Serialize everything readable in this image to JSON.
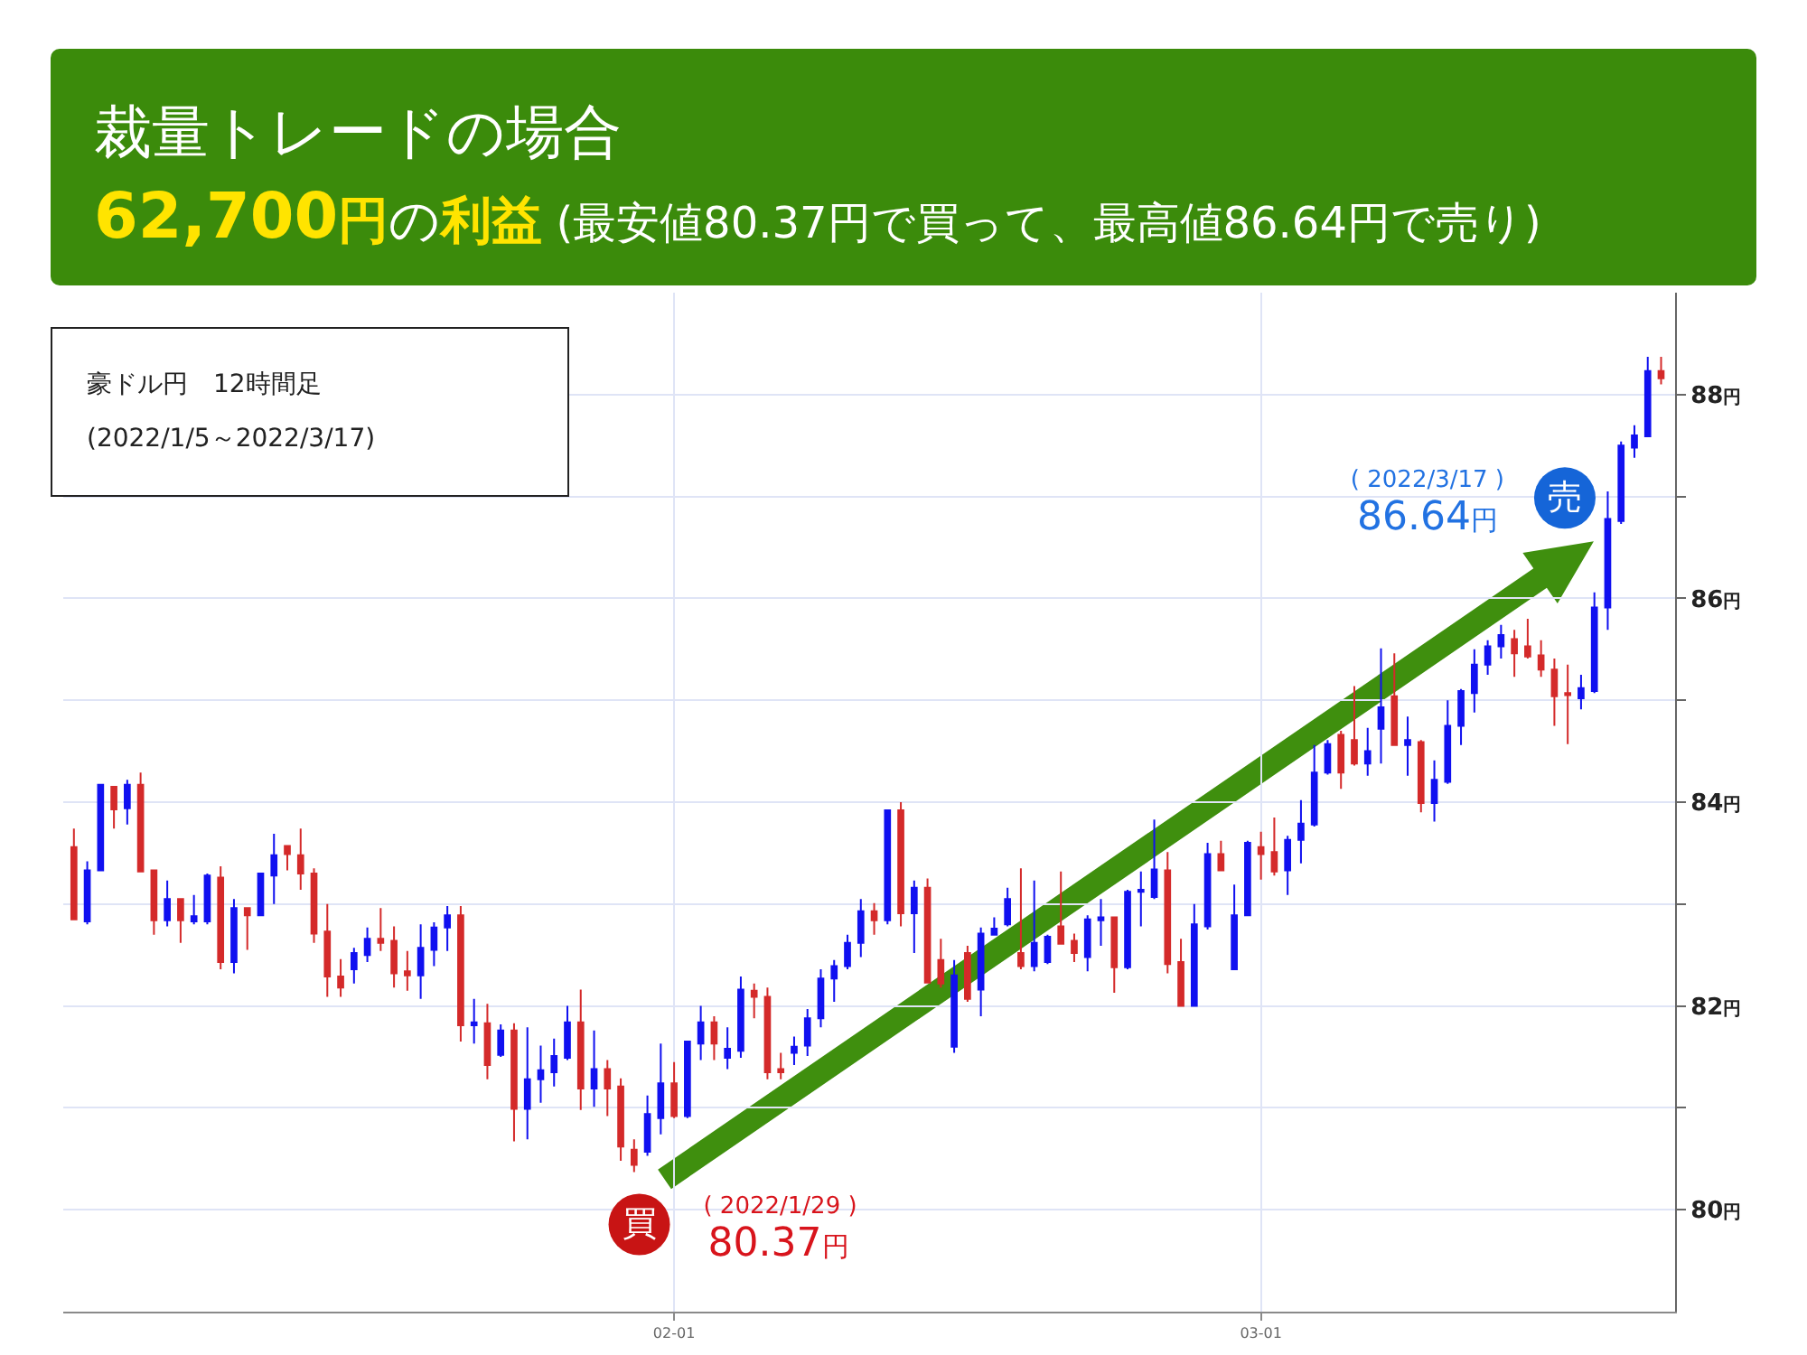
{
  "chart_data": {
    "type": "candlestick",
    "title": "裁量トレードの場合",
    "subtitle": "62,700円の利益 (最安値80.37円で買って、最高値86.64円で売り)",
    "categories": [
      null,
      null,
      null,
      null,
      null,
      null,
      null,
      null,
      null,
      null,
      null,
      null,
      null,
      null,
      null,
      null,
      null,
      null,
      null,
      null,
      null,
      null,
      null,
      null,
      null,
      null,
      null,
      null,
      null,
      null,
      null,
      null,
      null,
      null,
      null,
      null,
      null,
      null,
      null,
      null,
      null,
      null,
      null,
      null,
      null,
      "02-01",
      null,
      null,
      null,
      null,
      null,
      null,
      null,
      null,
      null,
      null,
      null,
      null,
      null,
      null,
      null,
      null,
      null,
      null,
      null,
      null,
      null,
      null,
      null,
      null,
      null,
      null,
      null,
      null,
      null,
      null,
      null,
      null,
      null,
      null,
      null,
      null,
      null,
      null,
      null,
      null,
      null,
      null,
      null,
      "03-01",
      null,
      null,
      null,
      null,
      null,
      null,
      null,
      null,
      null,
      null,
      null,
      null,
      null,
      null,
      null,
      null,
      null,
      null,
      null,
      null,
      null,
      null,
      null,
      null,
      null,
      null,
      null,
      null,
      null,
      null
    ],
    "ohlc": [
      [
        83.56,
        83.74,
        82.85,
        82.85
      ],
      [
        82.83,
        83.42,
        82.8,
        83.33
      ],
      [
        83.33,
        84.17,
        83.33,
        84.17
      ],
      [
        84.15,
        84.15,
        83.74,
        83.93
      ],
      [
        83.94,
        84.22,
        83.78,
        84.17
      ],
      [
        84.17,
        84.29,
        83.32,
        83.32
      ],
      [
        83.33,
        83.33,
        82.7,
        82.84
      ],
      [
        82.84,
        83.23,
        82.78,
        83.05
      ],
      [
        83.05,
        83.05,
        82.62,
        82.84
      ],
      [
        82.83,
        83.09,
        82.8,
        82.88
      ],
      [
        82.83,
        83.3,
        82.8,
        83.28
      ],
      [
        83.26,
        83.37,
        82.36,
        82.43
      ],
      [
        82.43,
        83.05,
        82.32,
        82.96
      ],
      [
        82.96,
        82.96,
        82.55,
        82.89
      ],
      [
        82.89,
        83.3,
        82.89,
        83.3
      ],
      [
        83.28,
        83.69,
        83.0,
        83.48
      ],
      [
        83.57,
        83.58,
        83.33,
        83.49
      ],
      [
        83.48,
        83.74,
        83.14,
        83.3
      ],
      [
        83.3,
        83.35,
        82.62,
        82.71
      ],
      [
        82.73,
        83.0,
        82.09,
        82.29
      ],
      [
        82.29,
        82.46,
        82.09,
        82.18
      ],
      [
        82.36,
        82.57,
        82.22,
        82.52
      ],
      [
        82.5,
        82.77,
        82.43,
        82.66
      ],
      [
        82.66,
        82.96,
        82.54,
        82.62
      ],
      [
        82.64,
        82.78,
        82.18,
        82.32
      ],
      [
        82.34,
        82.54,
        82.15,
        82.3
      ],
      [
        82.3,
        82.8,
        82.07,
        82.57
      ],
      [
        82.55,
        82.82,
        82.39,
        82.77
      ],
      [
        82.77,
        82.98,
        82.54,
        82.89
      ],
      [
        82.89,
        82.98,
        81.65,
        81.81
      ],
      [
        81.81,
        82.07,
        81.63,
        81.84
      ],
      [
        81.83,
        82.02,
        81.28,
        81.42
      ],
      [
        81.52,
        81.82,
        81.5,
        81.76
      ],
      [
        81.76,
        81.83,
        80.67,
        80.99
      ],
      [
        80.99,
        81.79,
        80.69,
        81.28
      ],
      [
        81.28,
        81.61,
        81.05,
        81.37
      ],
      [
        81.35,
        81.68,
        81.21,
        81.51
      ],
      [
        81.49,
        82.0,
        81.47,
        81.84
      ],
      [
        81.84,
        82.16,
        80.98,
        81.19
      ],
      [
        81.19,
        81.76,
        81.01,
        81.38
      ],
      [
        81.38,
        81.47,
        80.92,
        81.19
      ],
      [
        81.21,
        81.29,
        80.48,
        80.62
      ],
      [
        80.59,
        80.69,
        80.37,
        80.44
      ],
      [
        80.57,
        81.12,
        80.53,
        80.94
      ],
      [
        80.9,
        81.63,
        80.74,
        81.24
      ],
      [
        81.24,
        81.45,
        80.9,
        80.92
      ],
      [
        80.92,
        81.65,
        80.9,
        81.65
      ],
      [
        81.63,
        82.0,
        81.47,
        81.84
      ],
      [
        81.84,
        81.9,
        81.47,
        81.63
      ],
      [
        81.49,
        81.79,
        81.38,
        81.58
      ],
      [
        81.56,
        82.29,
        81.49,
        82.16
      ],
      [
        82.15,
        82.22,
        81.88,
        82.09
      ],
      [
        82.09,
        82.18,
        81.28,
        81.35
      ],
      [
        81.38,
        81.54,
        81.28,
        81.35
      ],
      [
        81.54,
        81.7,
        81.42,
        81.6
      ],
      [
        81.61,
        81.97,
        81.51,
        81.88
      ],
      [
        81.88,
        82.36,
        81.79,
        82.27
      ],
      [
        82.27,
        82.45,
        82.04,
        82.39
      ],
      [
        82.39,
        82.7,
        82.36,
        82.62
      ],
      [
        82.62,
        83.05,
        82.48,
        82.93
      ],
      [
        82.93,
        83.01,
        82.7,
        82.84
      ],
      [
        82.84,
        83.92,
        82.8,
        83.92
      ],
      [
        83.92,
        84.0,
        82.78,
        82.91
      ],
      [
        82.91,
        83.23,
        82.52,
        83.16
      ],
      [
        83.16,
        83.25,
        82.23,
        82.23
      ],
      [
        82.45,
        82.66,
        82.18,
        82.22
      ],
      [
        81.6,
        82.45,
        81.54,
        82.3
      ],
      [
        82.52,
        82.59,
        82.04,
        82.07
      ],
      [
        82.16,
        82.77,
        81.9,
        82.71
      ],
      [
        82.7,
        82.87,
        82.69,
        82.76
      ],
      [
        82.8,
        83.16,
        82.78,
        83.05
      ],
      [
        82.52,
        83.35,
        82.36,
        82.39
      ],
      [
        82.39,
        83.23,
        82.34,
        82.62
      ],
      [
        82.43,
        82.7,
        82.41,
        82.68
      ],
      [
        82.78,
        83.32,
        82.61,
        82.61
      ],
      [
        82.64,
        82.71,
        82.43,
        82.52
      ],
      [
        82.48,
        82.89,
        82.34,
        82.85
      ],
      [
        82.84,
        83.05,
        82.59,
        82.87
      ],
      [
        82.87,
        82.87,
        82.13,
        82.38
      ],
      [
        82.38,
        83.14,
        82.36,
        83.12
      ],
      [
        83.12,
        83.32,
        82.78,
        83.14
      ],
      [
        83.07,
        83.83,
        83.05,
        83.34
      ],
      [
        83.33,
        83.51,
        82.32,
        82.41
      ],
      [
        82.43,
        82.66,
        82.0,
        82.0
      ],
      [
        82.0,
        83.0,
        82.0,
        82.8
      ],
      [
        82.78,
        83.6,
        82.75,
        83.49
      ],
      [
        83.49,
        83.62,
        83.33,
        83.33
      ],
      [
        82.36,
        83.19,
        82.36,
        82.89
      ],
      [
        82.89,
        83.62,
        82.88,
        83.6
      ],
      [
        83.56,
        83.71,
        83.24,
        83.49
      ],
      [
        83.51,
        83.85,
        83.28,
        83.32
      ],
      [
        83.33,
        83.67,
        83.09,
        83.63
      ],
      [
        83.63,
        84.02,
        83.4,
        83.79
      ],
      [
        83.78,
        84.56,
        83.76,
        84.29
      ],
      [
        84.29,
        84.61,
        84.27,
        84.57
      ],
      [
        84.66,
        84.7,
        84.13,
        84.29
      ],
      [
        84.61,
        85.14,
        84.36,
        84.38
      ],
      [
        84.38,
        84.73,
        84.26,
        84.5
      ],
      [
        84.72,
        85.51,
        84.38,
        84.93
      ],
      [
        85.04,
        85.46,
        84.56,
        84.56
      ],
      [
        84.56,
        84.84,
        84.26,
        84.61
      ],
      [
        84.59,
        84.61,
        83.9,
        83.99
      ],
      [
        83.99,
        84.41,
        83.81,
        84.22
      ],
      [
        84.2,
        85.0,
        84.18,
        84.75
      ],
      [
        84.75,
        85.11,
        84.56,
        85.09
      ],
      [
        85.07,
        85.5,
        84.88,
        85.35
      ],
      [
        85.35,
        85.59,
        85.25,
        85.53
      ],
      [
        85.53,
        85.74,
        85.41,
        85.64
      ],
      [
        85.6,
        85.69,
        85.23,
        85.46
      ],
      [
        85.53,
        85.8,
        85.41,
        85.43
      ],
      [
        85.44,
        85.59,
        85.23,
        85.3
      ],
      [
        85.3,
        85.41,
        84.75,
        85.04
      ],
      [
        85.07,
        85.35,
        84.57,
        85.05
      ],
      [
        85.02,
        85.25,
        84.91,
        85.12
      ],
      [
        85.09,
        86.06,
        85.07,
        85.91
      ],
      [
        85.91,
        87.05,
        85.69,
        86.78
      ],
      [
        86.76,
        87.54,
        86.73,
        87.5
      ],
      [
        87.48,
        87.7,
        87.38,
        87.6
      ],
      [
        87.59,
        88.37,
        87.59,
        88.23
      ],
      [
        88.23,
        88.37,
        88.1,
        88.16
      ]
    ],
    "colors": [
      "#d42a2a",
      "#1010f0",
      "#1010f0",
      "#d42a2a",
      "#1010f0",
      "#d42a2a",
      "#d42a2a",
      "#1010f0",
      "#d42a2a",
      "#1010f0",
      "#1010f0",
      "#d42a2a",
      "#1010f0",
      "#d42a2a",
      "#1010f0",
      "#1010f0",
      "#d42a2a",
      "#d42a2a",
      "#d42a2a",
      "#d42a2a",
      "#d42a2a",
      "#1010f0",
      "#1010f0",
      "#d42a2a",
      "#d42a2a",
      "#d42a2a",
      "#1010f0",
      "#1010f0",
      "#1010f0",
      "#d42a2a",
      "#1010f0",
      "#d42a2a",
      "#1010f0",
      "#d42a2a",
      "#1010f0",
      "#1010f0",
      "#1010f0",
      "#1010f0",
      "#d42a2a",
      "#1010f0",
      "#d42a2a",
      "#d42a2a",
      "#d42a2a",
      "#1010f0",
      "#1010f0",
      "#d42a2a",
      "#1010f0",
      "#1010f0",
      "#d42a2a",
      "#1010f0",
      "#1010f0",
      "#d42a2a",
      "#d42a2a",
      "#d42a2a",
      "#1010f0",
      "#1010f0",
      "#1010f0",
      "#1010f0",
      "#1010f0",
      "#1010f0",
      "#d42a2a",
      "#1010f0",
      "#d42a2a",
      "#1010f0",
      "#d42a2a",
      "#d42a2a",
      "#1010f0",
      "#d42a2a",
      "#1010f0",
      "#1010f0",
      "#1010f0",
      "#d42a2a",
      "#1010f0",
      "#1010f0",
      "#d42a2a",
      "#d42a2a",
      "#1010f0",
      "#1010f0",
      "#d42a2a",
      "#1010f0",
      "#1010f0",
      "#1010f0",
      "#d42a2a",
      "#d42a2a",
      "#1010f0",
      "#1010f0",
      "#d42a2a",
      "#1010f0",
      "#1010f0",
      "#d42a2a",
      "#d42a2a",
      "#1010f0",
      "#1010f0",
      "#1010f0",
      "#1010f0",
      "#d42a2a",
      "#d42a2a",
      "#1010f0",
      "#1010f0",
      "#d42a2a",
      "#1010f0",
      "#d42a2a",
      "#1010f0",
      "#1010f0",
      "#1010f0",
      "#1010f0",
      "#1010f0",
      "#1010f0",
      "#d42a2a",
      "#d42a2a",
      "#d42a2a",
      "#d42a2a",
      "#d42a2a",
      "#1010f0",
      "#1010f0",
      "#1010f0",
      "#1010f0",
      "#1010f0",
      "#1010f0",
      "#d42a2a"
    ],
    "ylim": [
      79,
      89
    ],
    "yticks": [
      {
        "value": 80,
        "label": "80円"
      },
      {
        "value": 81,
        "label": null
      },
      {
        "value": 82,
        "label": "82円"
      },
      {
        "value": 83,
        "label": null
      },
      {
        "value": 84,
        "label": "84円"
      },
      {
        "value": 85,
        "label": null
      },
      {
        "value": 86,
        "label": "86円"
      },
      {
        "value": 87,
        "label": null
      },
      {
        "value": 88,
        "label": "88円"
      }
    ],
    "grid": true,
    "annotations": [
      "豪ドル円　12時間足",
      "(2022/1/5～2022/3/17)",
      "買",
      "( 2022/1/29 )",
      "80.37円",
      "売",
      "( 2022/3/17 )",
      "86.64円"
    ]
  }
}
